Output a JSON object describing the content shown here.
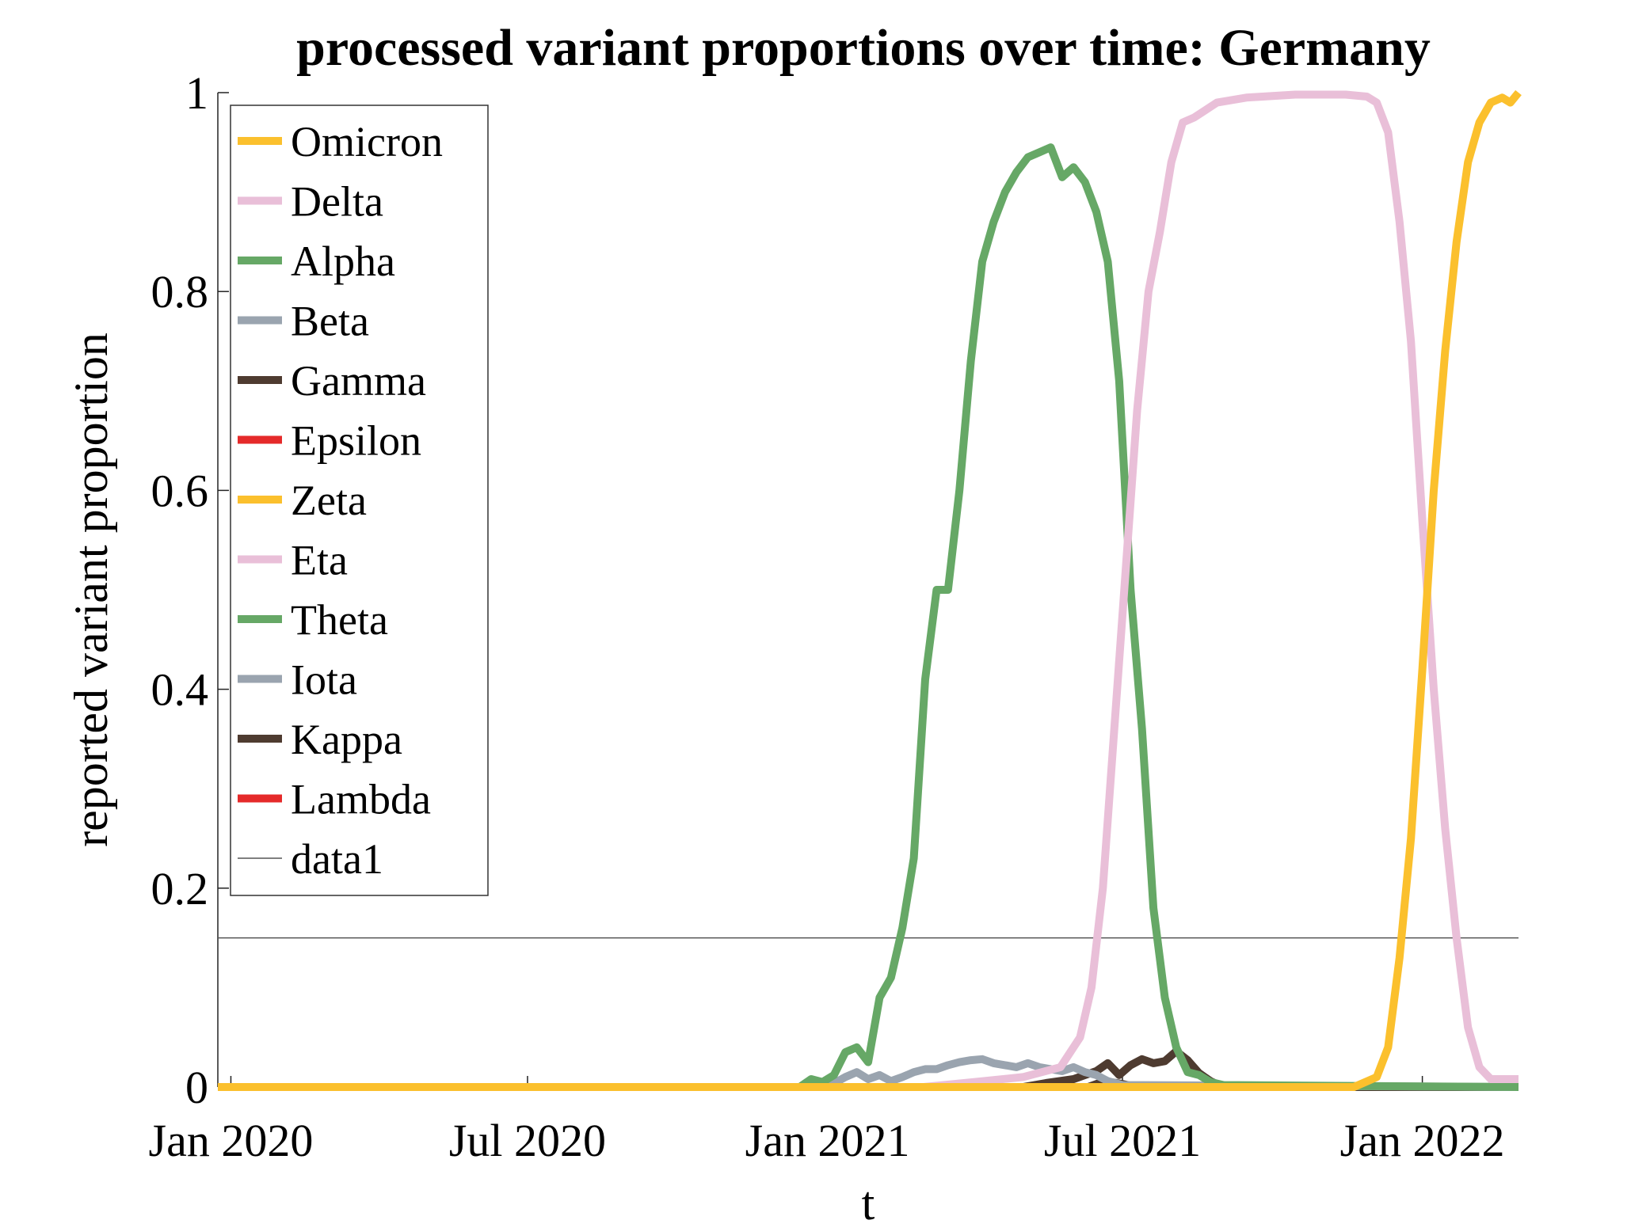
{
  "chart_data": {
    "type": "line",
    "title": "processed variant proportions over time: Germany",
    "xlabel": "t",
    "ylabel": "reported variant proportion",
    "xlim": [
      "2019-12-24",
      "2022-03-01"
    ],
    "ylim": [
      0,
      1
    ],
    "xticks": [
      {
        "date": "2020-01-01",
        "label": "Jan 2020"
      },
      {
        "date": "2020-07-01",
        "label": "Jul 2020"
      },
      {
        "date": "2021-01-01",
        "label": "Jan 2021"
      },
      {
        "date": "2021-07-01",
        "label": "Jul 2021"
      },
      {
        "date": "2022-01-01",
        "label": "Jan 2022"
      }
    ],
    "yticks": [
      {
        "value": 0,
        "label": "0"
      },
      {
        "value": 0.2,
        "label": "0.2"
      },
      {
        "value": 0.4,
        "label": "0.4"
      },
      {
        "value": 0.6,
        "label": "0.6"
      },
      {
        "value": 0.8,
        "label": "0.8"
      },
      {
        "value": 1,
        "label": "1"
      }
    ],
    "grid": false,
    "legend_position": "top-left",
    "series": [
      {
        "name": "Omicron",
        "color": "#FBC02D",
        "width": 10,
        "points": [
          [
            "2019-12-24",
            0
          ],
          [
            "2021-11-20",
            0
          ],
          [
            "2021-12-04",
            0.01
          ],
          [
            "2021-12-11",
            0.04
          ],
          [
            "2021-12-18",
            0.13
          ],
          [
            "2021-12-25",
            0.25
          ],
          [
            "2022-01-01",
            0.42
          ],
          [
            "2022-01-08",
            0.6
          ],
          [
            "2022-01-15",
            0.74
          ],
          [
            "2022-01-22",
            0.85
          ],
          [
            "2022-01-29",
            0.93
          ],
          [
            "2022-02-05",
            0.97
          ],
          [
            "2022-02-12",
            0.99
          ],
          [
            "2022-02-19",
            0.995
          ],
          [
            "2022-02-24",
            0.99
          ],
          [
            "2022-03-01",
            1.0
          ]
        ]
      },
      {
        "name": "Delta",
        "color": "#E9BFD8",
        "width": 10,
        "points": [
          [
            "2019-12-24",
            0
          ],
          [
            "2021-03-01",
            0
          ],
          [
            "2021-04-01",
            0.005
          ],
          [
            "2021-05-01",
            0.01
          ],
          [
            "2021-05-24",
            0.02
          ],
          [
            "2021-06-05",
            0.05
          ],
          [
            "2021-06-12",
            0.1
          ],
          [
            "2021-06-19",
            0.2
          ],
          [
            "2021-06-26",
            0.36
          ],
          [
            "2021-07-03",
            0.52
          ],
          [
            "2021-07-10",
            0.68
          ],
          [
            "2021-07-17",
            0.8
          ],
          [
            "2021-07-24",
            0.86
          ],
          [
            "2021-07-31",
            0.93
          ],
          [
            "2021-08-07",
            0.97
          ],
          [
            "2021-08-14",
            0.975
          ],
          [
            "2021-08-28",
            0.99
          ],
          [
            "2021-09-15",
            0.995
          ],
          [
            "2021-10-15",
            0.998
          ],
          [
            "2021-11-15",
            0.998
          ],
          [
            "2021-11-28",
            0.996
          ],
          [
            "2021-12-04",
            0.99
          ],
          [
            "2021-12-11",
            0.96
          ],
          [
            "2021-12-18",
            0.87
          ],
          [
            "2021-12-25",
            0.75
          ],
          [
            "2022-01-01",
            0.57
          ],
          [
            "2022-01-08",
            0.4
          ],
          [
            "2022-01-15",
            0.26
          ],
          [
            "2022-01-22",
            0.15
          ],
          [
            "2022-01-29",
            0.06
          ],
          [
            "2022-02-05",
            0.02
          ],
          [
            "2022-02-12",
            0.008
          ],
          [
            "2022-03-01",
            0.008
          ]
        ]
      },
      {
        "name": "Alpha",
        "color": "#66A866",
        "width": 10,
        "points": [
          [
            "2019-12-24",
            0
          ],
          [
            "2020-12-15",
            0
          ],
          [
            "2020-12-22",
            0.008
          ],
          [
            "2020-12-29",
            0.005
          ],
          [
            "2021-01-05",
            0.012
          ],
          [
            "2021-01-12",
            0.035
          ],
          [
            "2021-01-19",
            0.04
          ],
          [
            "2021-01-26",
            0.025
          ],
          [
            "2021-02-02",
            0.09
          ],
          [
            "2021-02-09",
            0.11
          ],
          [
            "2021-02-16",
            0.16
          ],
          [
            "2021-02-23",
            0.23
          ],
          [
            "2021-03-02",
            0.41
          ],
          [
            "2021-03-09",
            0.5
          ],
          [
            "2021-03-16",
            0.5
          ],
          [
            "2021-03-23",
            0.6
          ],
          [
            "2021-03-30",
            0.73
          ],
          [
            "2021-04-06",
            0.83
          ],
          [
            "2021-04-13",
            0.87
          ],
          [
            "2021-04-20",
            0.9
          ],
          [
            "2021-04-27",
            0.92
          ],
          [
            "2021-05-04",
            0.935
          ],
          [
            "2021-05-11",
            0.94
          ],
          [
            "2021-05-18",
            0.945
          ],
          [
            "2021-05-25",
            0.915
          ],
          [
            "2021-06-01",
            0.925
          ],
          [
            "2021-06-08",
            0.91
          ],
          [
            "2021-06-15",
            0.88
          ],
          [
            "2021-06-22",
            0.83
          ],
          [
            "2021-06-29",
            0.71
          ],
          [
            "2021-07-06",
            0.5
          ],
          [
            "2021-07-13",
            0.36
          ],
          [
            "2021-07-20",
            0.18
          ],
          [
            "2021-07-27",
            0.09
          ],
          [
            "2021-08-03",
            0.04
          ],
          [
            "2021-08-10",
            0.015
          ],
          [
            "2021-08-17",
            0.012
          ],
          [
            "2021-08-24",
            0.005
          ],
          [
            "2021-09-01",
            0.002
          ],
          [
            "2022-03-01",
            0
          ]
        ]
      },
      {
        "name": "Beta",
        "color": "#9AA4AF",
        "width": 10,
        "points": [
          [
            "2019-12-24",
            0
          ],
          [
            "2021-01-01",
            0
          ],
          [
            "2021-01-12",
            0.01
          ],
          [
            "2021-01-19",
            0.015
          ],
          [
            "2021-01-26",
            0.008
          ],
          [
            "2021-02-02",
            0.012
          ],
          [
            "2021-02-09",
            0.006
          ],
          [
            "2021-02-16",
            0.01
          ],
          [
            "2021-02-23",
            0.015
          ],
          [
            "2021-03-02",
            0.018
          ],
          [
            "2021-03-09",
            0.018
          ],
          [
            "2021-03-16",
            0.022
          ],
          [
            "2021-03-23",
            0.025
          ],
          [
            "2021-03-30",
            0.027
          ],
          [
            "2021-04-06",
            0.028
          ],
          [
            "2021-04-13",
            0.024
          ],
          [
            "2021-04-20",
            0.022
          ],
          [
            "2021-04-27",
            0.02
          ],
          [
            "2021-05-04",
            0.024
          ],
          [
            "2021-05-11",
            0.02
          ],
          [
            "2021-05-18",
            0.018
          ],
          [
            "2021-05-25",
            0.016
          ],
          [
            "2021-06-01",
            0.02
          ],
          [
            "2021-06-08",
            0.015
          ],
          [
            "2021-06-15",
            0.012
          ],
          [
            "2021-06-22",
            0.006
          ],
          [
            "2021-07-01",
            0.002
          ],
          [
            "2022-03-01",
            0
          ]
        ]
      },
      {
        "name": "Gamma",
        "color": "#4E3B30",
        "width": 10,
        "points": [
          [
            "2019-12-24",
            0
          ],
          [
            "2021-05-01",
            0
          ],
          [
            "2021-05-15",
            0.004
          ],
          [
            "2021-06-01",
            0.008
          ],
          [
            "2021-06-08",
            0.012
          ],
          [
            "2021-06-15",
            0.016
          ],
          [
            "2021-06-22",
            0.024
          ],
          [
            "2021-06-29",
            0.012
          ],
          [
            "2021-07-06",
            0.022
          ],
          [
            "2021-07-13",
            0.028
          ],
          [
            "2021-07-20",
            0.024
          ],
          [
            "2021-07-27",
            0.026
          ],
          [
            "2021-08-03",
            0.036
          ],
          [
            "2021-08-10",
            0.027
          ],
          [
            "2021-08-17",
            0.014
          ],
          [
            "2021-08-24",
            0.006
          ],
          [
            "2021-09-01",
            0
          ],
          [
            "2022-03-01",
            0
          ]
        ]
      },
      {
        "name": "Epsilon",
        "color": "#E52A2A",
        "width": 10,
        "points": [
          [
            "2019-12-24",
            0
          ],
          [
            "2022-03-01",
            0
          ]
        ]
      },
      {
        "name": "Zeta",
        "color": "#FBC02D",
        "width": 10,
        "points": [
          [
            "2019-12-24",
            0
          ],
          [
            "2022-03-01",
            0
          ]
        ]
      },
      {
        "name": "Eta",
        "color": "#E9BFD8",
        "width": 10,
        "points": [
          [
            "2019-12-24",
            0
          ],
          [
            "2022-03-01",
            0
          ]
        ]
      },
      {
        "name": "Theta",
        "color": "#66A866",
        "width": 10,
        "points": [
          [
            "2019-12-24",
            0
          ],
          [
            "2022-03-01",
            0
          ]
        ]
      },
      {
        "name": "Iota",
        "color": "#9AA4AF",
        "width": 10,
        "points": [
          [
            "2019-12-24",
            0
          ],
          [
            "2022-03-01",
            0
          ]
        ]
      },
      {
        "name": "Kappa",
        "color": "#4E3B30",
        "width": 10,
        "points": [
          [
            "2019-12-24",
            0
          ],
          [
            "2021-06-10",
            0
          ],
          [
            "2021-06-20",
            0.006
          ],
          [
            "2021-07-01",
            0.003
          ],
          [
            "2021-07-10",
            0
          ],
          [
            "2022-03-01",
            0
          ]
        ]
      },
      {
        "name": "Lambda",
        "color": "#E52A2A",
        "width": 10,
        "points": [
          [
            "2019-12-24",
            0
          ],
          [
            "2022-03-01",
            0
          ]
        ]
      },
      {
        "name": "data1",
        "color": "#555555",
        "width": 1.5,
        "points": [
          [
            "2019-12-24",
            0.15
          ],
          [
            "2022-03-01",
            0.15
          ]
        ]
      }
    ]
  }
}
